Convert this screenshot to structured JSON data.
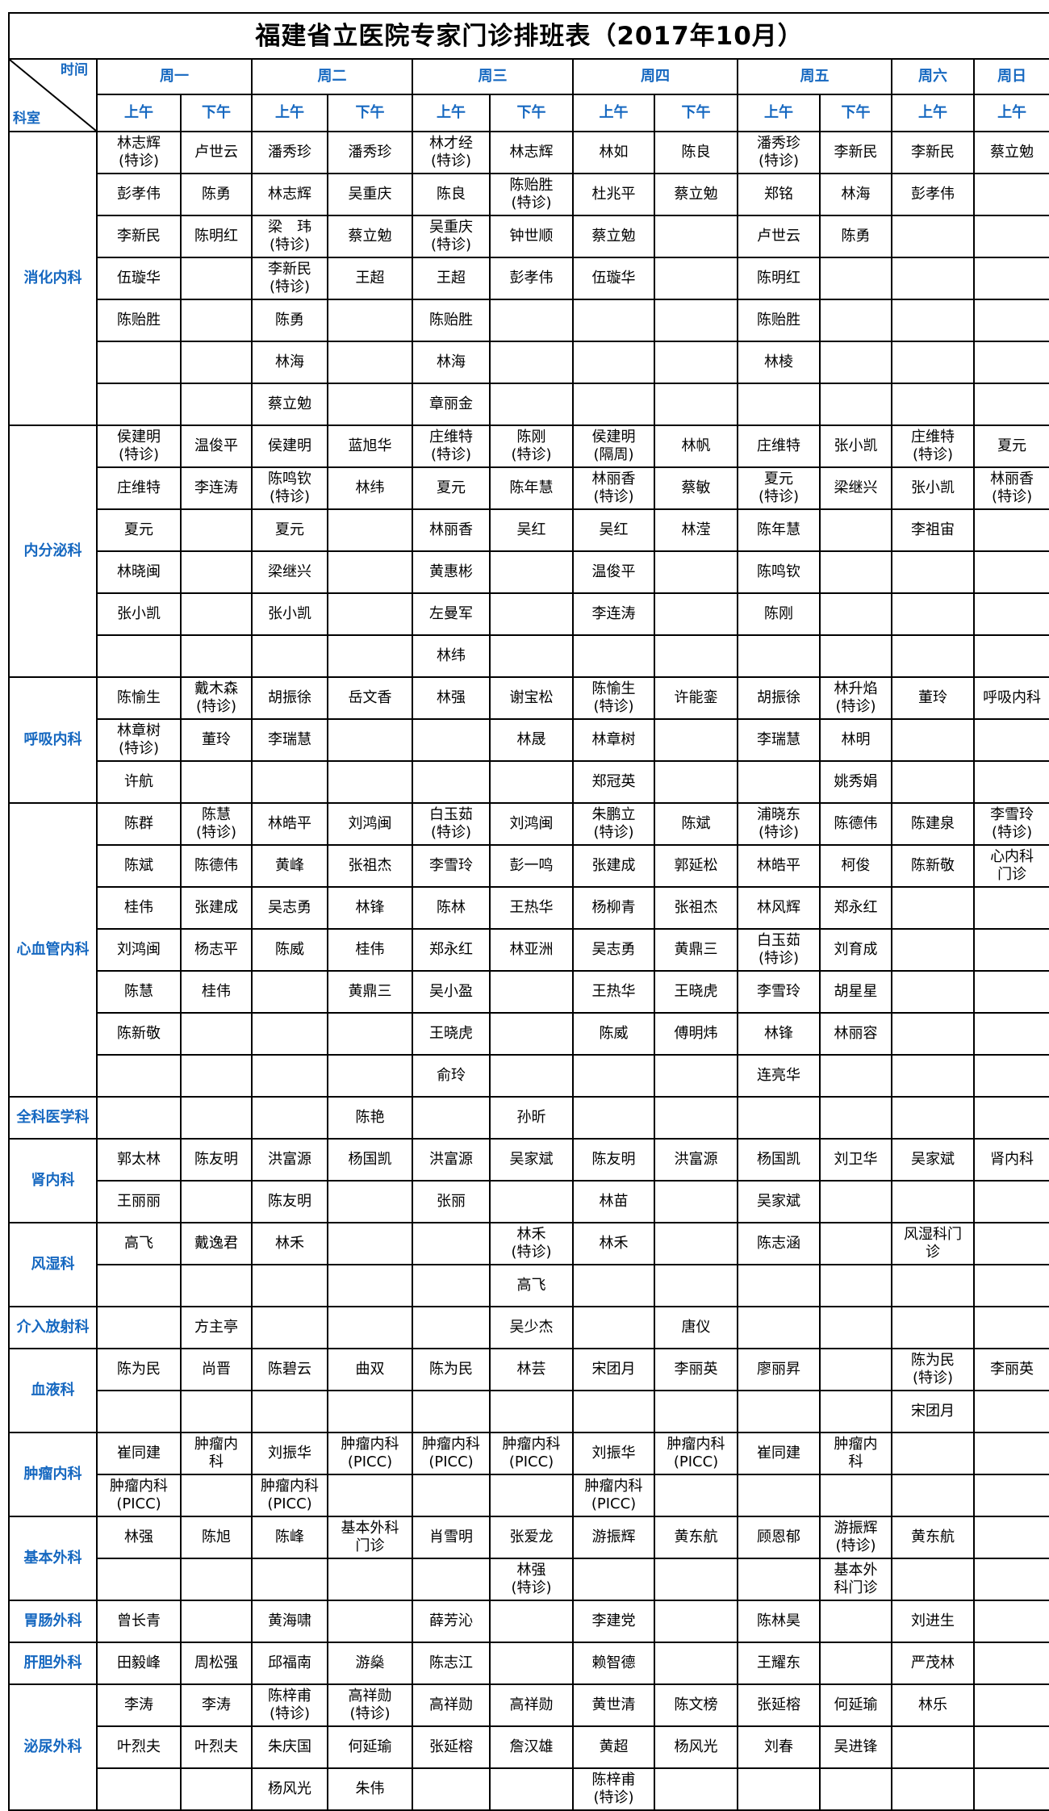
{
  "title": "福建省立医院专家门诊排班表（2017年10月）",
  "corner": {
    "top": "时间",
    "bottom": "科室"
  },
  "days": [
    "周一",
    "周二",
    "周三",
    "周四",
    "周五",
    "周六",
    "周日"
  ],
  "day_spans": [
    2,
    2,
    2,
    2,
    2,
    1,
    1
  ],
  "sessions": [
    "上午",
    "下午",
    "上午",
    "下午",
    "上午",
    "下午",
    "上午",
    "下午",
    "上午",
    "下午",
    "上午",
    "上午"
  ],
  "colors": {
    "header_text": "#1668c0",
    "grid": "#000000"
  },
  "departments": [
    {
      "name": "消化内科",
      "rows": [
        [
          "林志辉\n(特诊)",
          "卢世云",
          "潘秀珍",
          "潘秀珍",
          "林才经\n(特诊)",
          "林志辉",
          "林如",
          "陈良",
          "潘秀珍\n(特诊)",
          "李新民",
          "李新民",
          "蔡立勉"
        ],
        [
          "彭孝伟",
          "陈勇",
          "林志辉",
          "吴重庆",
          "陈良",
          "陈贻胜\n(特诊)",
          "杜兆平",
          "蔡立勉",
          "郑铭",
          "林海",
          "彭孝伟",
          ""
        ],
        [
          "李新民",
          "陈明红",
          "梁　玮\n(特诊)",
          "蔡立勉",
          "吴重庆\n(特诊)",
          "钟世顺",
          "蔡立勉",
          "",
          "卢世云",
          "陈勇",
          "",
          ""
        ],
        [
          "伍璇华",
          "",
          "李新民\n(特诊)",
          "王超",
          "王超",
          "彭孝伟",
          "伍璇华",
          "",
          "陈明红",
          "",
          "",
          ""
        ],
        [
          "陈贻胜",
          "",
          "陈勇",
          "",
          "陈贻胜",
          "",
          "",
          "",
          "陈贻胜",
          "",
          "",
          ""
        ],
        [
          "",
          "",
          "林海",
          "",
          "林海",
          "",
          "",
          "",
          "林棱",
          "",
          "",
          ""
        ],
        [
          "",
          "",
          "蔡立勉",
          "",
          "章丽金",
          "",
          "",
          "",
          "",
          "",
          "",
          ""
        ]
      ]
    },
    {
      "name": "内分泌科",
      "rows": [
        [
          "侯建明\n(特诊)",
          "温俊平",
          "侯建明",
          "蓝旭华",
          "庄维特\n(特诊)",
          "陈刚\n(特诊)",
          "侯建明\n(隔周)",
          "林帆",
          "庄维特",
          "张小凯",
          "庄维特\n(特诊)",
          "夏元"
        ],
        [
          "庄维特",
          "李连涛",
          "陈鸣钦\n(特诊)",
          "林纬",
          "夏元",
          "陈年慧",
          "林丽香\n(特诊)",
          "蔡敏",
          "夏元\n(特诊)",
          "梁继兴",
          "张小凯",
          "林丽香\n(特诊)"
        ],
        [
          "夏元",
          "",
          "夏元",
          "",
          "林丽香",
          "吴红",
          "吴红",
          "林滢",
          "陈年慧",
          "",
          "李祖宙",
          ""
        ],
        [
          "林晓闽",
          "",
          "梁继兴",
          "",
          "黄惠彬",
          "",
          "温俊平",
          "",
          "陈鸣钦",
          "",
          "",
          ""
        ],
        [
          "张小凯",
          "",
          "张小凯",
          "",
          "左曼军",
          "",
          "李连涛",
          "",
          "陈刚",
          "",
          "",
          ""
        ],
        [
          "",
          "",
          "",
          "",
          "林纬",
          "",
          "",
          "",
          "",
          "",
          "",
          ""
        ]
      ]
    },
    {
      "name": "呼吸内科",
      "rows": [
        [
          "陈愉生",
          "戴木森\n(特诊)",
          "胡振徐",
          "岳文香",
          "林强",
          "谢宝松",
          "陈愉生\n(特诊)",
          "许能銮",
          "胡振徐",
          "林升焰\n(特诊)",
          "董玲",
          "呼吸内科"
        ],
        [
          "林章树\n(特诊)",
          "董玲",
          "李瑞慧",
          "",
          "",
          "林晟",
          "林章树",
          "",
          "李瑞慧",
          "林明",
          "",
          ""
        ],
        [
          "许航",
          "",
          "",
          "",
          "",
          "",
          "郑冠英",
          "",
          "",
          "姚秀娟",
          "",
          ""
        ]
      ]
    },
    {
      "name": "心血管内科",
      "rows": [
        [
          "陈群",
          "陈慧\n(特诊)",
          "林皓平",
          "刘鸿闽",
          "白玉茹\n(特诊)",
          "刘鸿闽",
          "朱鹏立\n(特诊)",
          "陈斌",
          "浦晓东\n(特诊)",
          "陈德伟",
          "陈建泉",
          "李雪玲\n(特诊)"
        ],
        [
          "陈斌",
          "陈德伟",
          "黄峰",
          "张祖杰",
          "李雪玲",
          "彭一鸣",
          "张建成",
          "郭延松",
          "林皓平",
          "柯俊",
          "陈新敬",
          "心内科\n门诊"
        ],
        [
          "桂伟",
          "张建成",
          "吴志勇",
          "林锋",
          "陈林",
          "王热华",
          "杨柳青",
          "张祖杰",
          "林风辉",
          "郑永红",
          "",
          ""
        ],
        [
          "刘鸿闽",
          "杨志平",
          "陈威",
          "桂伟",
          "郑永红",
          "林亚洲",
          "吴志勇",
          "黄鼎三",
          "白玉茹\n(特诊)",
          "刘育成",
          "",
          ""
        ],
        [
          "陈慧",
          "桂伟",
          "",
          "黄鼎三",
          "吴小盈",
          "",
          "王热华",
          "王晓虎",
          "李雪玲",
          "胡星星",
          "",
          ""
        ],
        [
          "陈新敬",
          "",
          "",
          "",
          "王晓虎",
          "",
          "陈威",
          "傅明炜",
          "林锋",
          "林丽容",
          "",
          ""
        ],
        [
          "",
          "",
          "",
          "",
          "俞玲",
          "",
          "",
          "",
          "连亮华",
          "",
          "",
          ""
        ]
      ]
    },
    {
      "name": "全科医学科",
      "rows": [
        [
          "",
          "",
          "",
          "陈艳",
          "",
          "孙昕",
          "",
          "",
          "",
          "",
          "",
          ""
        ]
      ]
    },
    {
      "name": "肾内科",
      "rows": [
        [
          "郭太林",
          "陈友明",
          "洪富源",
          "杨国凯",
          "洪富源",
          "吴家斌",
          "陈友明",
          "洪富源",
          "杨国凯",
          "刘卫华",
          "吴家斌",
          "肾内科"
        ],
        [
          "王丽丽",
          "",
          "陈友明",
          "",
          "张丽",
          "",
          "林苗",
          "",
          "吴家斌",
          "",
          "",
          ""
        ]
      ]
    },
    {
      "name": "风湿科",
      "rows": [
        [
          "高飞",
          "戴逸君",
          "林禾",
          "",
          "",
          "林禾\n(特诊)",
          "林禾",
          "",
          "陈志涵",
          "",
          "风湿科门\n诊",
          ""
        ],
        [
          "",
          "",
          "",
          "",
          "",
          "高飞",
          "",
          "",
          "",
          "",
          "",
          ""
        ]
      ]
    },
    {
      "name": "介入放射科",
      "rows": [
        [
          "",
          "方主亭",
          "",
          "",
          "",
          "吴少杰",
          "",
          "唐仪",
          "",
          "",
          "",
          ""
        ]
      ]
    },
    {
      "name": "血液科",
      "rows": [
        [
          "陈为民",
          "尚晋",
          "陈碧云",
          "曲双",
          "陈为民",
          "林芸",
          "宋团月",
          "李丽英",
          "廖丽昇",
          "",
          "陈为民\n(特诊)",
          "李丽英"
        ],
        [
          "",
          "",
          "",
          "",
          "",
          "",
          "",
          "",
          "",
          "",
          "宋团月",
          ""
        ]
      ]
    },
    {
      "name": "肿瘤内科",
      "rows": [
        [
          "崔同建",
          "肿瘤内\n科",
          "刘振华",
          "肿瘤内科\n(PICC)",
          "肿瘤内科\n(PICC)",
          "肿瘤内科\n(PICC)",
          "刘振华",
          "肿瘤内科\n(PICC)",
          "崔同建",
          "肿瘤内\n科",
          "",
          ""
        ],
        [
          "肿瘤内科\n(PICC)",
          "",
          "肿瘤内科\n(PICC)",
          "",
          "",
          "",
          "肿瘤内科\n(PICC)",
          "",
          "",
          "",
          "",
          ""
        ]
      ]
    },
    {
      "name": "基本外科",
      "rows": [
        [
          "林强",
          "陈旭",
          "陈峰",
          "基本外科\n门诊",
          "肖雪明",
          "张爱龙",
          "游振辉",
          "黄东航",
          "顾恩郁",
          "游振辉\n(特诊)",
          "黄东航",
          ""
        ],
        [
          "",
          "",
          "",
          "",
          "",
          "林强\n(特诊)",
          "",
          "",
          "",
          "基本外\n科门诊",
          "",
          ""
        ]
      ]
    },
    {
      "name": "胃肠外科",
      "rows": [
        [
          "曾长青",
          "",
          "黄海啸",
          "",
          "薛芳沁",
          "",
          "李建党",
          "",
          "陈林昊",
          "",
          "刘进生",
          ""
        ]
      ]
    },
    {
      "name": "肝胆外科",
      "rows": [
        [
          "田毅峰",
          "周松强",
          "邱福南",
          "游燊",
          "陈志江",
          "",
          "赖智德",
          "",
          "王耀东",
          "",
          "严茂林",
          ""
        ]
      ]
    },
    {
      "name": "泌尿外科",
      "rows": [
        [
          "李涛",
          "李涛",
          "陈梓甫\n(特诊)",
          "高祥勋\n(特诊)",
          "高祥勋",
          "高祥勋",
          "黄世清",
          "陈文榜",
          "张延榕",
          "何延瑜",
          "林乐",
          ""
        ],
        [
          "叶烈夫",
          "叶烈夫",
          "朱庆国",
          "何延瑜",
          "张延榕",
          "詹汉雄",
          "黄超",
          "杨风光",
          "刘春",
          "吴进锋",
          "",
          ""
        ],
        [
          "",
          "",
          "杨风光",
          "朱伟",
          "",
          "",
          "陈梓甫\n(特诊)",
          "",
          "",
          "",
          "",
          ""
        ]
      ]
    }
  ]
}
